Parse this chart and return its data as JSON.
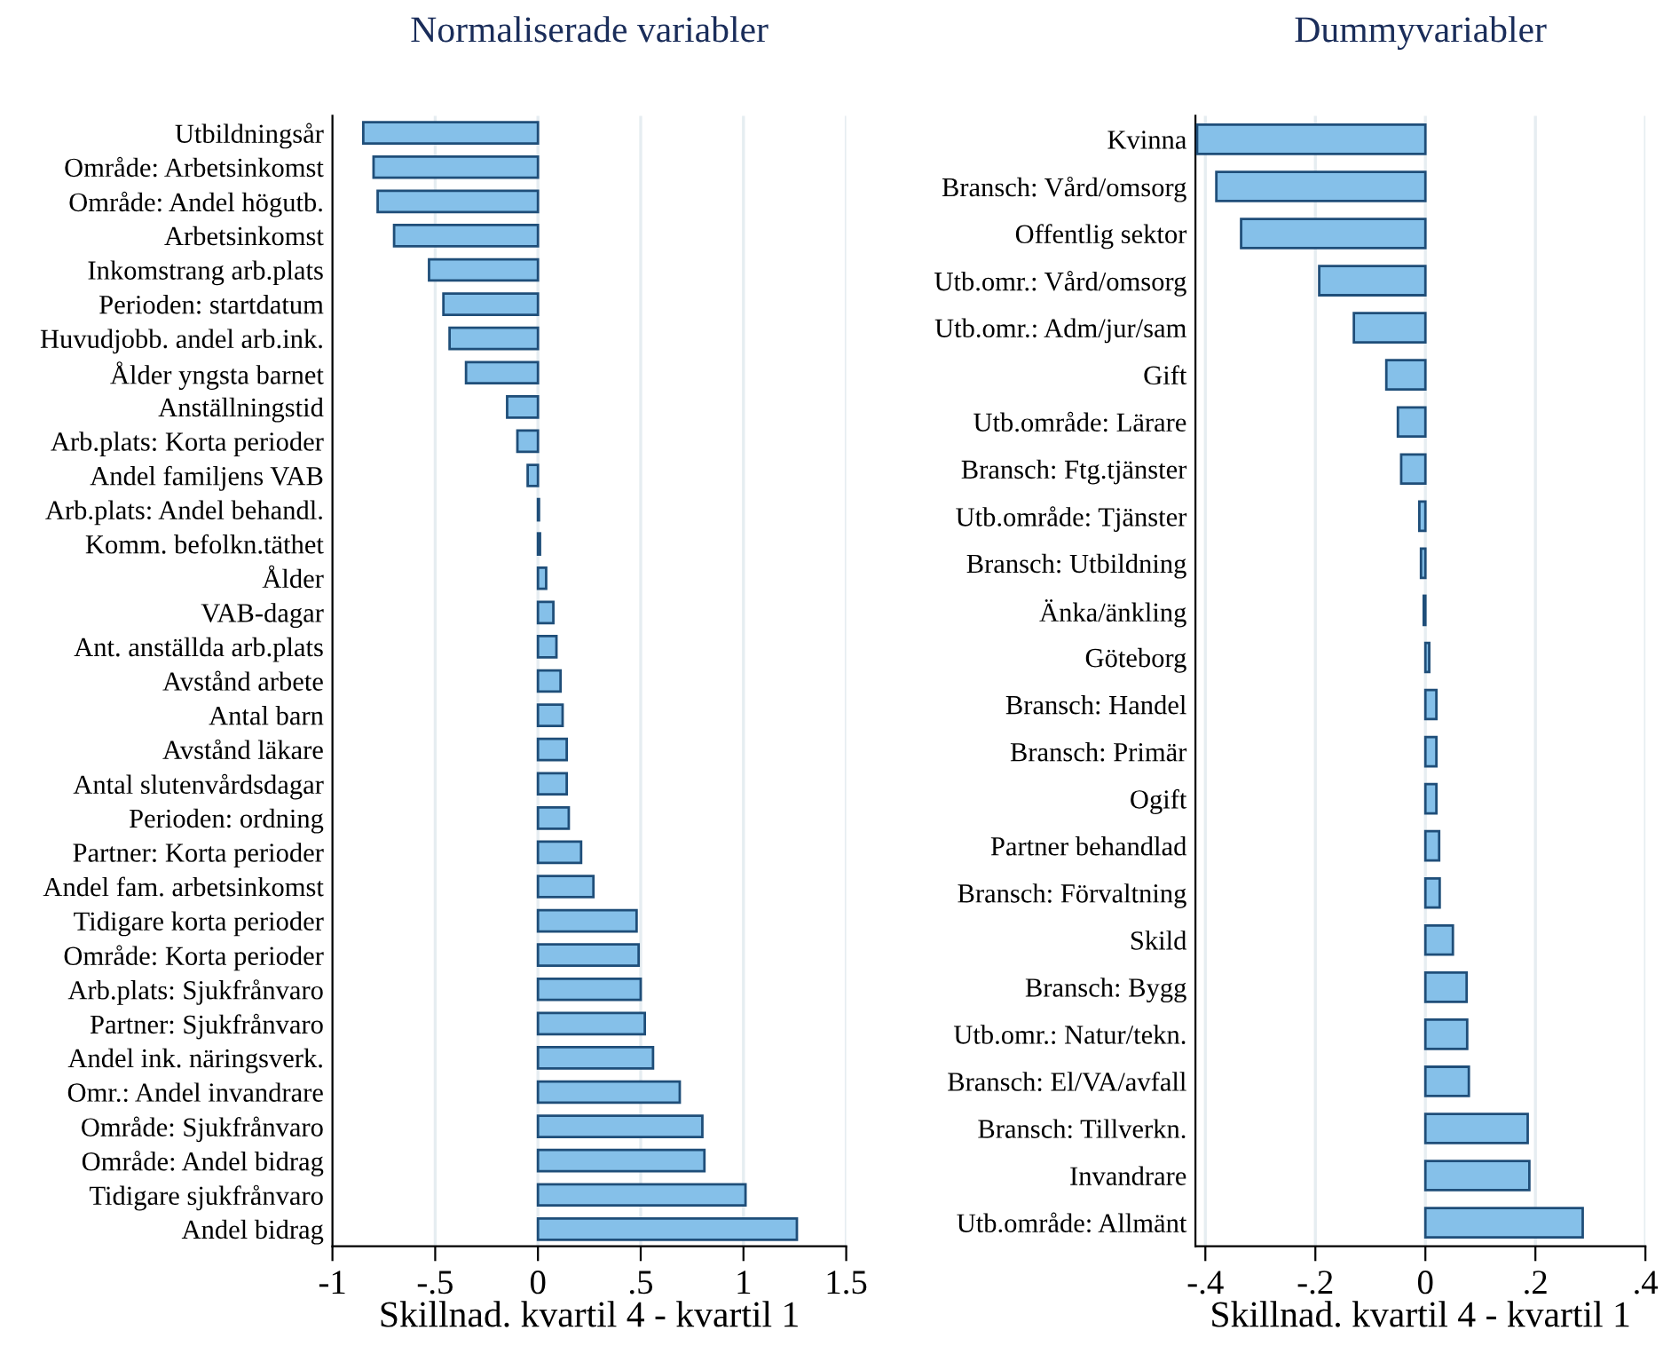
{
  "chart_data": [
    {
      "type": "bar",
      "orientation": "horizontal",
      "title": "Normaliserade variabler",
      "xlabel": "Skillnad. kvartil 4 - kvartil 1",
      "categories": [
        "Utbildningsår",
        "Område: Arbetsinkomst",
        "Område: Andel högutb.",
        "Arbetsinkomst",
        "Inkomstrang arb.plats",
        "Perioden: startdatum",
        "Huvudjobb. andel arb.ink.",
        "Ålder yngsta barnet",
        "Anställningstid",
        "Arb.plats: Korta perioder",
        "Andel familjens VAB",
        "Arb.plats: Andel behandl.",
        "Komm. befolkn.täthet",
        "Ålder",
        "VAB-dagar",
        "Ant. anställda arb.plats",
        "Avstånd arbete",
        "Antal barn",
        "Avstånd läkare",
        "Antal slutenvårdsdagar",
        "Perioden: ordning",
        "Partner: Korta perioder",
        "Andel fam. arbetsinkomst",
        "Tidigare korta perioder",
        "Område: Korta perioder",
        "Arb.plats: Sjukfrånvaro",
        "Partner: Sjukfrånvaro",
        "Andel ink. näringsverk.",
        "Omr.: Andel invandrare",
        "Område: Sjukfrånvaro",
        "Område: Andel bidrag",
        "Tidigare sjukfrånvaro",
        "Andel bidrag"
      ],
      "values": [
        -0.85,
        -0.8,
        -0.78,
        -0.7,
        -0.53,
        -0.46,
        -0.43,
        -0.35,
        -0.15,
        -0.1,
        -0.05,
        0.005,
        0.01,
        0.04,
        0.075,
        0.09,
        0.11,
        0.12,
        0.14,
        0.14,
        0.15,
        0.21,
        0.27,
        0.48,
        0.49,
        0.5,
        0.52,
        0.56,
        0.69,
        0.8,
        0.81,
        1.01,
        1.26
      ],
      "color": "#85c0e9",
      "xlim": [
        -1,
        1.5
      ],
      "xticks": [
        -1,
        {
          "value": -0.5,
          "label": "-.5"
        },
        0,
        {
          "value": 0.5,
          "label": ".5"
        },
        1,
        1.5
      ],
      "grid": "x"
    },
    {
      "type": "bar",
      "orientation": "horizontal",
      "title": "Dummyvariabler",
      "xlabel": "Skillnad. kvartil 4 - kvartil 1",
      "categories": [
        "Kvinna",
        "Bransch: Vård/omsorg",
        "Offentlig sektor",
        "Utb.omr.: Vård/omsorg",
        "Utb.omr.: Adm/jur/sam",
        "Gift",
        "Utb.område: Lärare",
        "Bransch: Ftg.tjänster",
        "Utb.område: Tjänster",
        "Bransch: Utbildning",
        "Änka/änkling",
        "Göteborg",
        "Bransch: Handel",
        "Bransch: Primär",
        "Ogift",
        "Partner behandlad",
        "Bransch: Förvaltning",
        "Skild",
        "Bransch: Bygg",
        "Utb.omr.: Natur/tekn.",
        "Bransch: El/VA/avfall",
        "Bransch: Tillverkn.",
        "Invandrare",
        "Utb.område: Allmänt"
      ],
      "values": [
        -0.415,
        -0.38,
        -0.335,
        -0.193,
        -0.13,
        -0.071,
        -0.05,
        -0.044,
        -0.011,
        -0.008,
        -0.003,
        0.007,
        0.02,
        0.02,
        0.02,
        0.025,
        0.026,
        0.05,
        0.075,
        0.076,
        0.079,
        0.186,
        0.189,
        0.286
      ],
      "color": "#85c0e9",
      "xlim": [
        -0.418,
        0.4
      ],
      "xticks": [
        {
          "value": -0.4,
          "label": "-.4"
        },
        {
          "value": -0.2,
          "label": "-.2"
        },
        0,
        {
          "value": 0.2,
          "label": ".2"
        },
        {
          "value": 0.4,
          "label": ".4"
        }
      ],
      "grid": "x"
    }
  ]
}
